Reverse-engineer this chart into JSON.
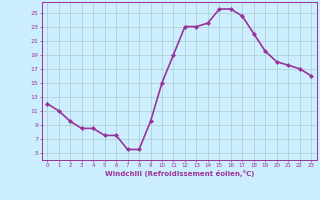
{
  "x": [
    0,
    1,
    2,
    3,
    4,
    5,
    6,
    7,
    8,
    9,
    10,
    11,
    12,
    13,
    14,
    15,
    16,
    17,
    18,
    19,
    20,
    21,
    22,
    23
  ],
  "y": [
    12,
    11,
    9.5,
    8.5,
    8.5,
    7.5,
    7.5,
    5.5,
    5.5,
    9.5,
    15,
    19,
    23,
    23,
    23.5,
    25.5,
    25.5,
    24.5,
    22,
    19.5,
    18,
    17.5,
    17,
    16
  ],
  "line_color": "#993399",
  "marker": "D",
  "marker_size": 2,
  "bg_color": "#cceeff",
  "grid_color": "#aacccc",
  "ylim": [
    4,
    26.5
  ],
  "xlim": [
    -0.5,
    23.5
  ],
  "yticks": [
    5,
    7,
    9,
    11,
    13,
    15,
    17,
    19,
    21,
    23,
    25
  ],
  "xticks": [
    0,
    1,
    2,
    3,
    4,
    5,
    6,
    7,
    8,
    9,
    10,
    11,
    12,
    13,
    14,
    15,
    16,
    17,
    18,
    19,
    20,
    21,
    22,
    23
  ],
  "xlabel": "Windchill (Refroidissement éolien,°C)",
  "xlabel_color": "#993399",
  "axis_color": "#993399",
  "tick_color": "#993399",
  "line_width": 1.2,
  "title": ""
}
